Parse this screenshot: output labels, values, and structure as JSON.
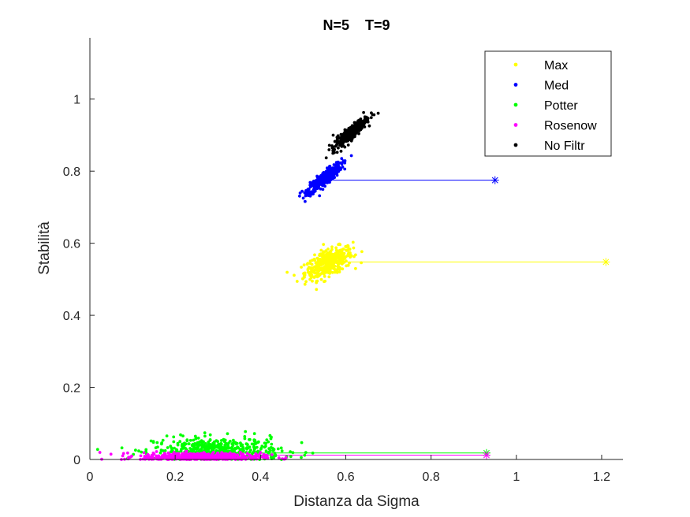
{
  "chart_data": {
    "type": "scatter",
    "title": "N=5    T=9",
    "xlabel": "Distanza da Sigma",
    "ylabel": "Stabilità",
    "xlim": [
      0,
      1.25
    ],
    "ylim": [
      0,
      1.17
    ],
    "xticks": [
      "0",
      "0.2",
      "0.4",
      "0.6",
      "0.8",
      "1",
      "1.2"
    ],
    "yticks": [
      "0",
      "0.2",
      "0.4",
      "0.6",
      "0.8",
      "1"
    ],
    "grid": false,
    "legend_position": "top-right",
    "series": [
      {
        "name": "Max",
        "color": "#FFFF00",
        "cluster": {
          "cx": 0.56,
          "cy": 0.545,
          "sx": 0.028,
          "sy": 0.022,
          "corr": 0.6,
          "n": 420
        },
        "reference_point": {
          "x": 1.21,
          "y": 0.548
        },
        "line_start_x": 0.57
      },
      {
        "name": "Med",
        "color": "#0000FF",
        "cluster": {
          "cx": 0.55,
          "cy": 0.78,
          "sx": 0.02,
          "sy": 0.02,
          "corr": 0.88,
          "n": 420
        },
        "reference_point": {
          "x": 0.95,
          "y": 0.775
        },
        "line_start_x": 0.57
      },
      {
        "name": "Potter",
        "color": "#00FF00",
        "cluster": {
          "cx": 0.3,
          "cy": 0.025,
          "sx": 0.075,
          "sy": 0.018,
          "corr": 0.0,
          "n": 520
        },
        "reference_point": {
          "x": 0.93,
          "y": 0.018
        },
        "line_start_x": 0.3
      },
      {
        "name": "Rosenow",
        "color": "#FF00FF",
        "cluster": {
          "cx": 0.26,
          "cy": 0.007,
          "sx": 0.07,
          "sy": 0.006,
          "corr": 0.0,
          "n": 520
        },
        "reference_point": {
          "x": 0.93,
          "y": 0.012
        },
        "line_start_x": 0.26
      },
      {
        "name": "No Filtr",
        "color": "#000000",
        "cluster": {
          "cx": 0.61,
          "cy": 0.905,
          "sx": 0.02,
          "sy": 0.022,
          "corr": 0.9,
          "n": 340
        },
        "reference_point": null,
        "line_start_x": null
      }
    ]
  }
}
